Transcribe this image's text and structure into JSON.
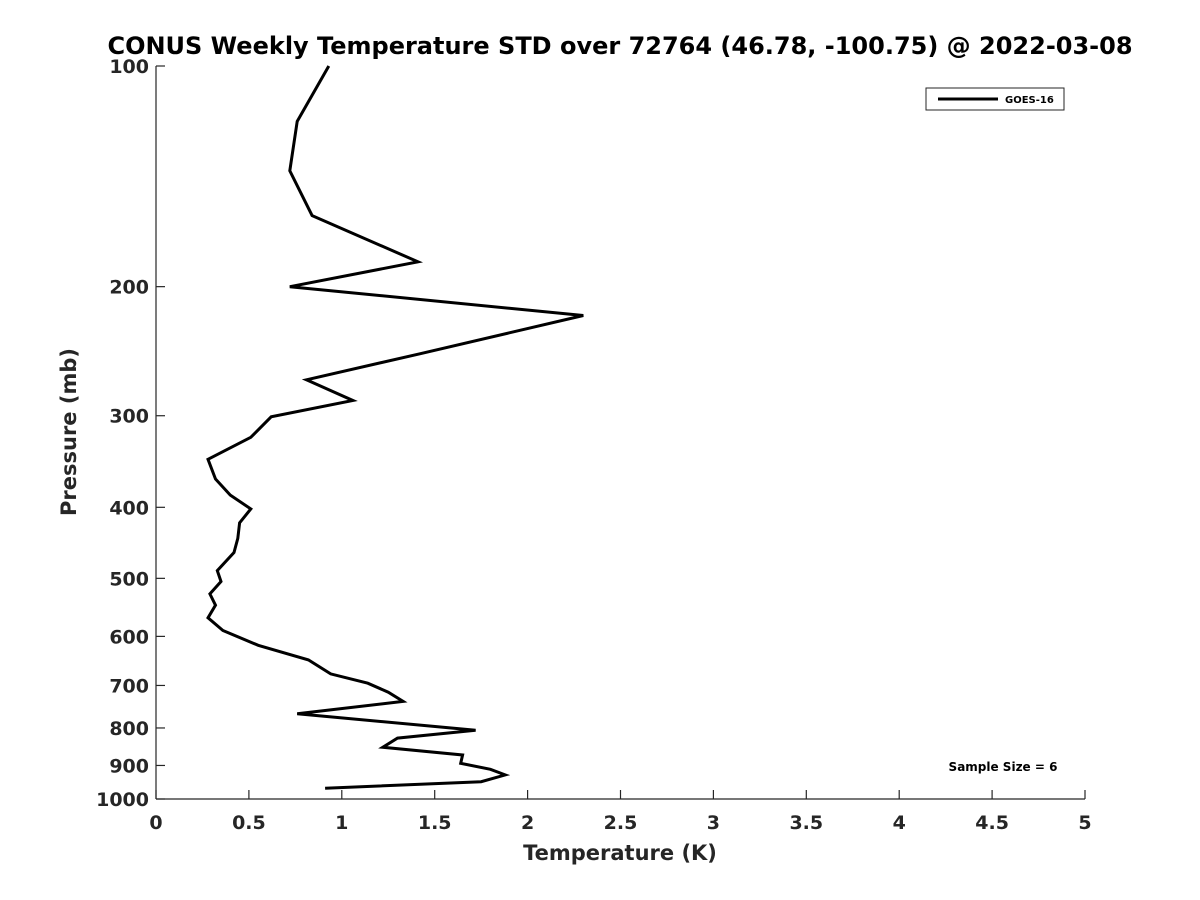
{
  "chart_data": {
    "type": "line",
    "title": "CONUS Weekly Temperature STD over 72764 (46.78, -100.75) @ 2022-03-08",
    "xlabel": "Temperature (K)",
    "ylabel": "Pressure (mb)",
    "xlim": [
      0,
      5
    ],
    "ylim": [
      100,
      1000
    ],
    "y_scale": "log",
    "y_reversed": true,
    "xticks": [
      "0",
      "0.5",
      "1",
      "1.5",
      "2",
      "2.5",
      "3",
      "3.5",
      "4",
      "4.5",
      "5"
    ],
    "yticks": [
      "100",
      "200",
      "300",
      "400",
      "500",
      "600",
      "700",
      "800",
      "900",
      "1000"
    ],
    "grid": false,
    "legend_position": "top-right",
    "annotation": "Sample Size = 6",
    "line_color": "#000000",
    "series": [
      {
        "name": "GOES-16",
        "x": [
          0.93,
          0.76,
          0.72,
          0.84,
          1.41,
          0.72,
          2.3,
          1.42,
          0.81,
          1.06,
          0.62,
          0.51,
          0.28,
          0.32,
          0.4,
          0.51,
          0.45,
          0.44,
          0.42,
          0.33,
          0.35,
          0.29,
          0.32,
          0.28,
          0.36,
          0.55,
          0.82,
          0.94,
          1.14,
          1.25,
          1.33,
          0.76,
          1.72,
          1.3,
          1.22,
          1.65,
          1.64,
          1.8,
          1.88,
          1.75,
          0.91
        ],
        "y": [
          100,
          119,
          139,
          160,
          185,
          200,
          219,
          247,
          268,
          286,
          301,
          321,
          344,
          366,
          385,
          402,
          420,
          441,
          461,
          488,
          505,
          525,
          544,
          566,
          589,
          617,
          646,
          675,
          695,
          715,
          736,
          765,
          806,
          826,
          850,
          871,
          894,
          911,
          927,
          947,
          967
        ]
      }
    ]
  }
}
